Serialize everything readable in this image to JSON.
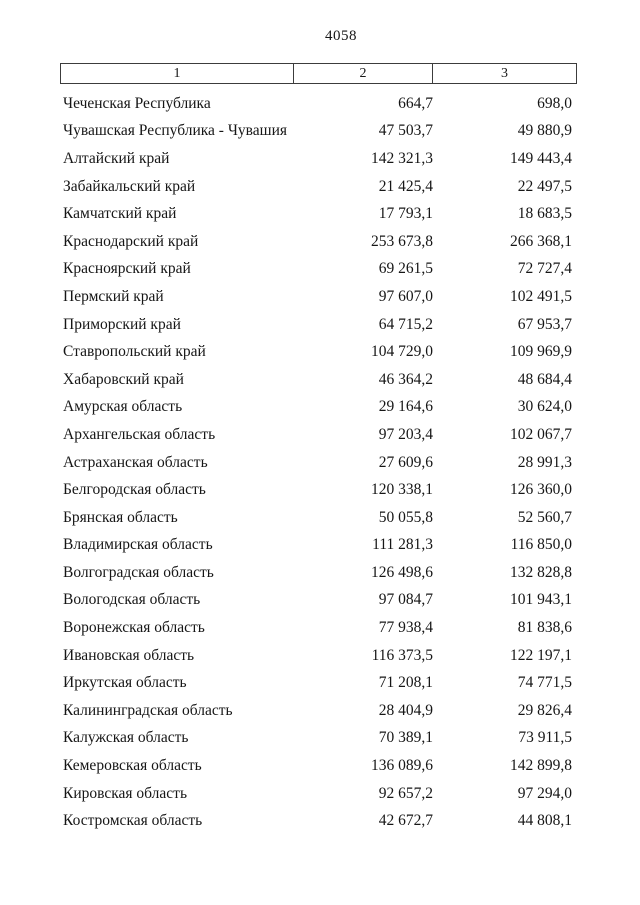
{
  "page": {
    "number": "4058"
  },
  "table": {
    "header": {
      "col1": "1",
      "col2": "2",
      "col3": "3"
    },
    "rows": [
      {
        "name": "Чеченская Республика",
        "v1": "664,7",
        "v2": "698,0"
      },
      {
        "name": "Чувашская Республика - Чувашия",
        "v1": "47 503,7",
        "v2": "49 880,9"
      },
      {
        "name": "Алтайский край",
        "v1": "142 321,3",
        "v2": "149 443,4"
      },
      {
        "name": "Забайкальский край",
        "v1": "21 425,4",
        "v2": "22 497,5"
      },
      {
        "name": "Камчатский край",
        "v1": "17 793,1",
        "v2": "18 683,5"
      },
      {
        "name": "Краснодарский край",
        "v1": "253 673,8",
        "v2": "266 368,1"
      },
      {
        "name": "Красноярский край",
        "v1": "69 261,5",
        "v2": "72 727,4"
      },
      {
        "name": "Пермский край",
        "v1": "97 607,0",
        "v2": "102 491,5"
      },
      {
        "name": "Приморский край",
        "v1": "64 715,2",
        "v2": "67 953,7"
      },
      {
        "name": "Ставропольский край",
        "v1": "104 729,0",
        "v2": "109 969,9"
      },
      {
        "name": "Хабаровский край",
        "v1": "46 364,2",
        "v2": "48 684,4"
      },
      {
        "name": "Амурская область",
        "v1": "29 164,6",
        "v2": "30 624,0"
      },
      {
        "name": "Архангельская область",
        "v1": "97 203,4",
        "v2": "102 067,7"
      },
      {
        "name": "Астраханская область",
        "v1": "27 609,6",
        "v2": "28 991,3"
      },
      {
        "name": "Белгородская область",
        "v1": "120 338,1",
        "v2": "126 360,0"
      },
      {
        "name": "Брянская область",
        "v1": "50 055,8",
        "v2": "52 560,7"
      },
      {
        "name": "Владимирская область",
        "v1": "111 281,3",
        "v2": "116 850,0"
      },
      {
        "name": "Волгоградская область",
        "v1": "126 498,6",
        "v2": "132 828,8"
      },
      {
        "name": "Вологодская область",
        "v1": "97 084,7",
        "v2": "101 943,1"
      },
      {
        "name": "Воронежская область",
        "v1": "77 938,4",
        "v2": "81 838,6"
      },
      {
        "name": "Ивановская область",
        "v1": "116 373,5",
        "v2": "122 197,1"
      },
      {
        "name": "Иркутская область",
        "v1": "71 208,1",
        "v2": "74 771,5"
      },
      {
        "name": "Калининградская область",
        "v1": "28 404,9",
        "v2": "29 826,4"
      },
      {
        "name": "Калужская область",
        "v1": "70 389,1",
        "v2": "73 911,5"
      },
      {
        "name": "Кемеровская область",
        "v1": "136 089,6",
        "v2": "142 899,8"
      },
      {
        "name": "Кировская область",
        "v1": "92 657,2",
        "v2": "97 294,0"
      },
      {
        "name": "Костромская область",
        "v1": "42 672,7",
        "v2": "44 808,1"
      }
    ]
  }
}
